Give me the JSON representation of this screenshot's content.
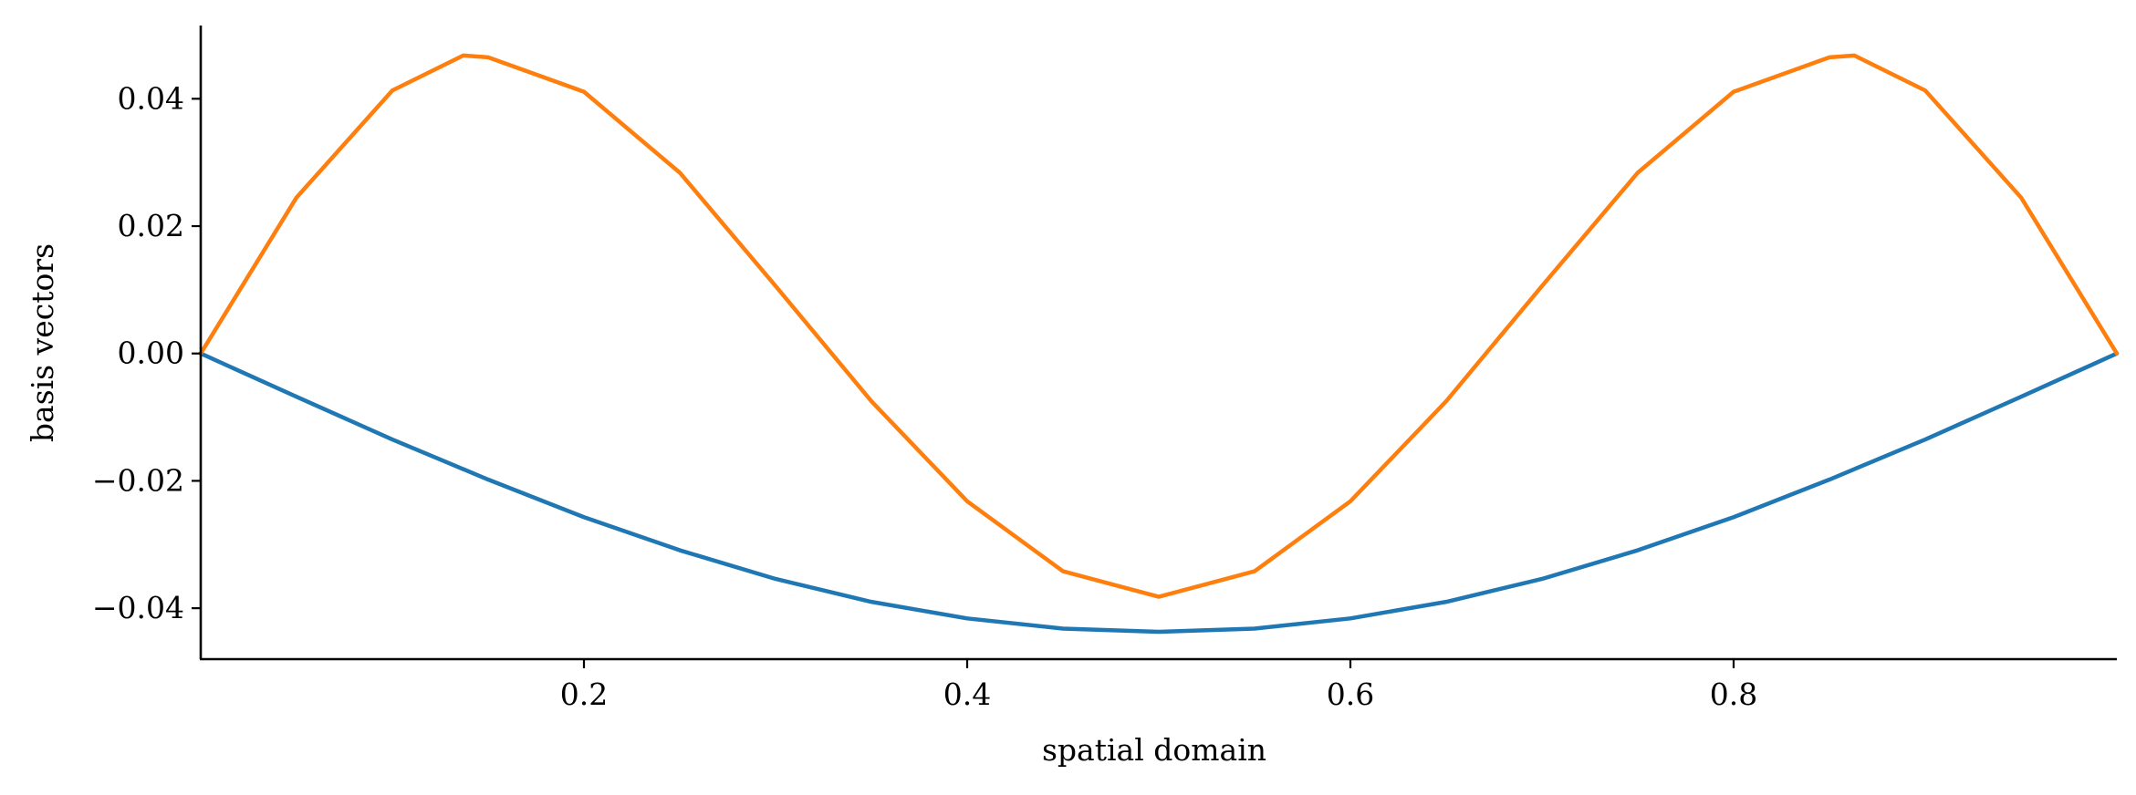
{
  "chart_data": {
    "type": "line",
    "title": "",
    "xlabel": "spatial domain",
    "ylabel": "basis vectors",
    "xlim": [
      0.0,
      1.0
    ],
    "ylim": [
      -0.048,
      0.0515
    ],
    "xticks": [
      {
        "value": 0.2,
        "label": "0.2"
      },
      {
        "value": 0.4,
        "label": "0.4"
      },
      {
        "value": 0.6,
        "label": "0.6"
      },
      {
        "value": 0.8,
        "label": "0.8"
      }
    ],
    "yticks": [
      {
        "value": -0.04,
        "label": "−0.04"
      },
      {
        "value": -0.02,
        "label": "−0.02"
      },
      {
        "value": 0.0,
        "label": "0.00"
      },
      {
        "value": 0.02,
        "label": "0.02"
      },
      {
        "value": 0.04,
        "label": "0.04"
      }
    ],
    "grid": false,
    "legend": "none",
    "spines": "left-bottom",
    "series": [
      {
        "color": "#1f77b4",
        "x": [
          0.0,
          0.05,
          0.1,
          0.15,
          0.2,
          0.25,
          0.3,
          0.35,
          0.4,
          0.45,
          0.5,
          0.55,
          0.6,
          0.65,
          0.7,
          0.75,
          0.8,
          0.85,
          0.9,
          0.95,
          1.0
        ],
        "values": [
          0.0,
          -0.0068,
          -0.0135,
          -0.0198,
          -0.0257,
          -0.0309,
          -0.0354,
          -0.039,
          -0.0416,
          -0.0432,
          -0.0437,
          -0.0432,
          -0.0416,
          -0.039,
          -0.0354,
          -0.0309,
          -0.0257,
          -0.0198,
          -0.0135,
          -0.0068,
          0.0
        ]
      },
      {
        "color": "#ff7f0e",
        "x": [
          0.0,
          0.05,
          0.1,
          0.137,
          0.15,
          0.2,
          0.25,
          0.3,
          0.35,
          0.4,
          0.45,
          0.5,
          0.55,
          0.6,
          0.65,
          0.7,
          0.75,
          0.8,
          0.85,
          0.863,
          0.9,
          0.95,
          1.0
        ],
        "values": [
          0.0,
          0.0245,
          0.0413,
          0.0468,
          0.0465,
          0.0411,
          0.0284,
          0.0106,
          -0.0075,
          -0.0232,
          -0.0342,
          -0.0382,
          -0.0342,
          -0.0232,
          -0.0075,
          0.0106,
          0.0284,
          0.0411,
          0.0465,
          0.0468,
          0.0413,
          0.0245,
          0.0
        ]
      }
    ]
  }
}
